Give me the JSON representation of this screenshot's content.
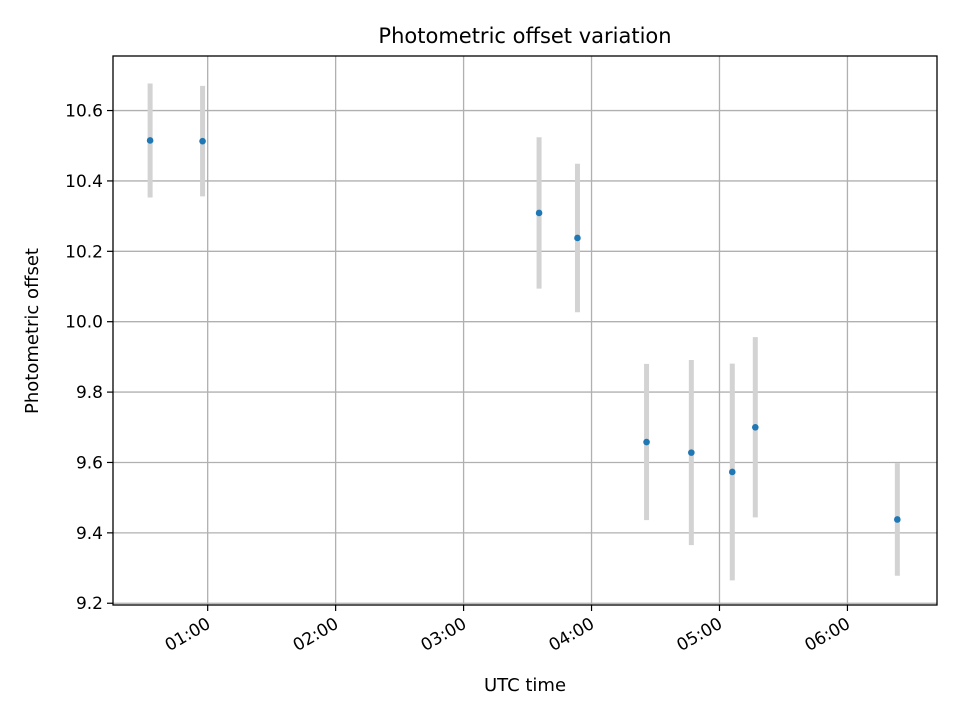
{
  "chart_data": {
    "type": "scatter",
    "title": "Photometric offset variation",
    "xlabel": "UTC time",
    "ylabel": "Photometric offset",
    "x_ticks": [
      "01:00",
      "02:00",
      "03:00",
      "04:00",
      "05:00",
      "06:00"
    ],
    "x_tick_hours": [
      1,
      2,
      3,
      4,
      5,
      6
    ],
    "xlim_hours": [
      0.26,
      6.7
    ],
    "ylim": [
      9.195,
      10.755
    ],
    "y_ticks": [
      9.2,
      9.4,
      9.6,
      9.8,
      10.0,
      10.2,
      10.4,
      10.6
    ],
    "y_tick_labels": [
      "9.2",
      "9.4",
      "9.6",
      "9.8",
      "10.0",
      "10.2",
      "10.4",
      "10.6"
    ],
    "grid": true,
    "colors": {
      "point": "#1f77b4",
      "errorbar": "#d3d3d3",
      "grid": "#b0b0b0"
    },
    "points": [
      {
        "hour": 0.55,
        "y": 10.515,
        "err": 0.162
      },
      {
        "hour": 0.96,
        "y": 10.513,
        "err": 0.157
      },
      {
        "hour": 3.59,
        "y": 10.309,
        "err": 0.215
      },
      {
        "hour": 3.89,
        "y": 10.238,
        "err": 0.211
      },
      {
        "hour": 4.43,
        "y": 9.658,
        "err": 0.222
      },
      {
        "hour": 4.78,
        "y": 9.628,
        "err": 0.263
      },
      {
        "hour": 5.1,
        "y": 9.573,
        "err": 0.308
      },
      {
        "hour": 5.28,
        "y": 9.7,
        "err": 0.256
      },
      {
        "hour": 6.39,
        "y": 9.438,
        "err": 0.16
      }
    ]
  }
}
